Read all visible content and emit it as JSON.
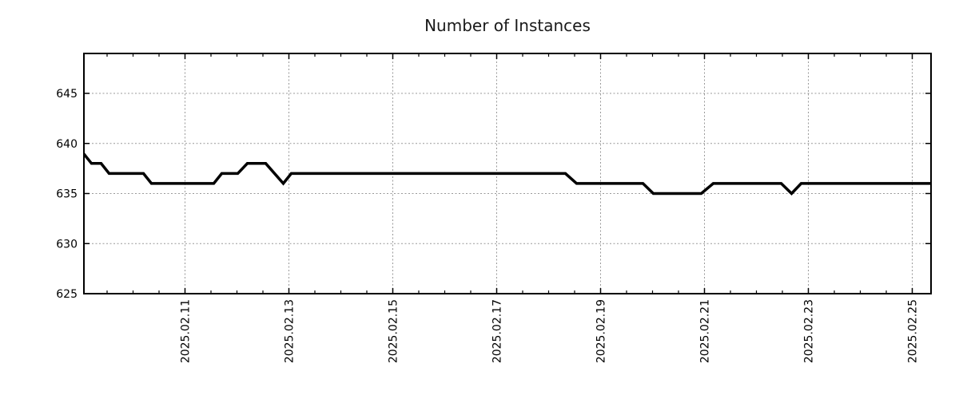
{
  "title": "Number of Instances",
  "chart_data": {
    "type": "line",
    "title": "Number of Instances",
    "xlabel": "",
    "ylabel": "",
    "legend": "none",
    "grid": "dotted major gridlines, box border with inward mirrored ticks",
    "line_color": "#000000",
    "grid_color": "#999999",
    "background_color": "#ffffff",
    "x_axis": {
      "tick_labels": [
        "2025.02.11",
        "2025.02.13",
        "2025.02.15",
        "2025.02.17",
        "2025.02.19",
        "2025.02.21",
        "2025.02.23",
        "2025.02.25"
      ],
      "tick_day_offsets": [
        2,
        4,
        6,
        8,
        10,
        12,
        14,
        16
      ],
      "origin_date": "2025-02-09 00:00",
      "visible_range_days": [
        0.046,
        16.354
      ],
      "minor_tick_interval_days": 0.5
    },
    "y_axis": {
      "tick_labels": [
        "625",
        "630",
        "635",
        "640",
        "645"
      ],
      "tick_values": [
        625,
        630,
        635,
        640,
        645
      ],
      "range": [
        625,
        649
      ]
    },
    "series_name": "Number of Instances",
    "points": [
      {
        "d": 0.046,
        "date": "2025-02-09 01:05",
        "value": 639
      },
      {
        "d": 0.2,
        "date": "2025-02-09 04:50",
        "value": 638
      },
      {
        "d": 0.385,
        "date": "2025-02-09 09:15",
        "value": 638
      },
      {
        "d": 0.538,
        "date": "2025-02-09 12:55",
        "value": 637
      },
      {
        "d": 1.2,
        "date": "2025-02-10 04:50",
        "value": 637
      },
      {
        "d": 1.354,
        "date": "2025-02-10 08:30",
        "value": 636
      },
      {
        "d": 2.554,
        "date": "2025-02-11 13:20",
        "value": 636
      },
      {
        "d": 2.708,
        "date": "2025-02-11 17:00",
        "value": 637
      },
      {
        "d": 3.015,
        "date": "2025-02-12 00:20",
        "value": 637
      },
      {
        "d": 3.2,
        "date": "2025-02-12 04:50",
        "value": 638
      },
      {
        "d": 3.554,
        "date": "2025-02-12 13:20",
        "value": 638
      },
      {
        "d": 3.892,
        "date": "2025-02-12 21:25",
        "value": 636
      },
      {
        "d": 4.046,
        "date": "2025-02-13 01:05",
        "value": 637
      },
      {
        "d": 9.323,
        "date": "2025-02-18 07:45",
        "value": 637
      },
      {
        "d": 9.538,
        "date": "2025-02-18 12:55",
        "value": 636
      },
      {
        "d": 10.815,
        "date": "2025-02-19 19:35",
        "value": 636
      },
      {
        "d": 11.015,
        "date": "2025-02-20 00:20",
        "value": 635
      },
      {
        "d": 11.938,
        "date": "2025-02-20 22:30",
        "value": 635
      },
      {
        "d": 12.169,
        "date": "2025-02-21 04:05",
        "value": 636
      },
      {
        "d": 13.477,
        "date": "2025-02-22 11:25",
        "value": 636
      },
      {
        "d": 13.677,
        "date": "2025-02-22 16:15",
        "value": 635
      },
      {
        "d": 13.862,
        "date": "2025-02-22 20:40",
        "value": 636
      },
      {
        "d": 16.354,
        "date": "2025-02-25 08:30",
        "value": 636
      }
    ]
  }
}
